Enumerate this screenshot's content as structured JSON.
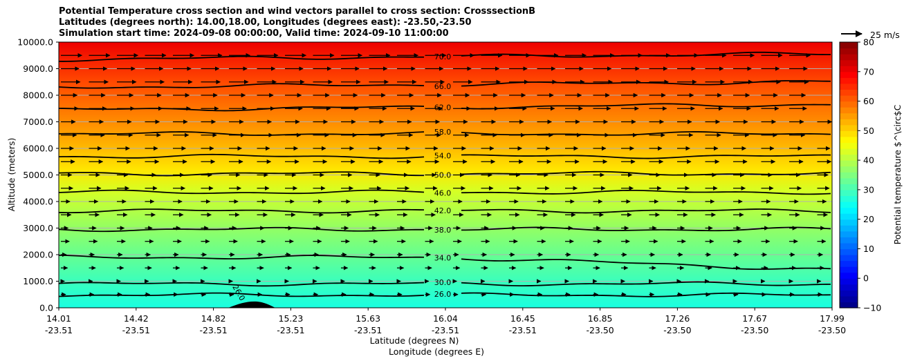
{
  "chart_data": {
    "type": "contour_cross_section",
    "title_lines": [
      "Potential Temperature cross section and wind vectors parallel to cross section: CrosssectionB",
      "Latitudes (degrees north): 14.00,18.00, Longitudes (degrees east): -23.50,-23.50",
      "Simulation start time: 2024-09-08 00:00:00, Valid time: 2024-09-10 11:00:00"
    ],
    "ylabel": "Altitude (meters)",
    "xlabel_lat": "Latitude (degrees N)",
    "xlabel_lon": "Longitude (degrees E)",
    "ylim": [
      0,
      10000
    ],
    "yticks": [
      "0.0",
      "1000.0",
      "2000.0",
      "3000.0",
      "4000.0",
      "5000.0",
      "6000.0",
      "7000.0",
      "8000.0",
      "9000.0",
      "10000.0"
    ],
    "xticks_lat": [
      "14.01",
      "14.42",
      "14.82",
      "15.23",
      "15.63",
      "16.04",
      "16.45",
      "16.85",
      "17.26",
      "17.67",
      "17.99"
    ],
    "xticks_lon": [
      "-23.51",
      "-23.51",
      "-23.51",
      "-23.51",
      "-23.51",
      "-23.51",
      "-23.51",
      "-23.50",
      "-23.50",
      "-23.50",
      "-23.50"
    ],
    "grid": "horizontal",
    "colorbar": {
      "label": "Potential temperature $^\\circ$C",
      "min": -10,
      "max": 80,
      "ticks": [
        "−10",
        "0",
        "10",
        "20",
        "30",
        "40",
        "50",
        "60",
        "70",
        "80"
      ],
      "colormap": "jet"
    },
    "quiver_key": {
      "label": "25 m/s",
      "speed": 25
    },
    "contour_levels": [
      {
        "value": 26,
        "label": "26.0",
        "altitude": 480
      },
      {
        "value": 30,
        "label": "30.0",
        "altitude": 900
      },
      {
        "value": 34,
        "label": "34.0",
        "altitude": 1900
      },
      {
        "value": 38,
        "label": "38.0",
        "altitude": 2950
      },
      {
        "value": 42,
        "label": "42.0",
        "altitude": 3650
      },
      {
        "value": 46,
        "label": "46.0",
        "altitude": 4350
      },
      {
        "value": 50,
        "label": "50.0",
        "altitude": 5050
      },
      {
        "value": 54,
        "label": "54.0",
        "altitude": 5700
      },
      {
        "value": 58,
        "label": "58.0",
        "altitude": 6550
      },
      {
        "value": 62,
        "label": "62.0",
        "altitude": 7450
      },
      {
        "value": 66,
        "label": "66.0",
        "altitude": 8300
      },
      {
        "value": 70,
        "label": "70.0",
        "altitude": 9350
      }
    ],
    "terrain_label": "26.0",
    "wind_vectors": "eastward (parallel to section), speed increasing with altitude"
  }
}
